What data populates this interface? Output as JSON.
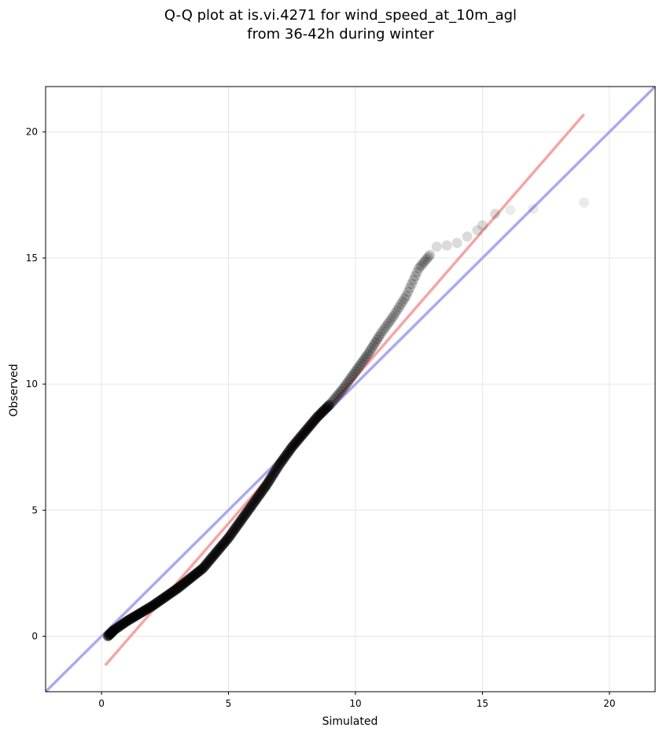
{
  "chart_data": {
    "type": "scatter",
    "title_lines": [
      "Q-Q plot at is.vi.4271 for wind_speed_at_10m_agl",
      "from 36-42h during winter"
    ],
    "xlabel": "Simulated",
    "ylabel": "Observed",
    "xlim": [
      -2.2,
      21.8
    ],
    "ylim": [
      -2.2,
      21.8
    ],
    "xticks": [
      "0",
      "5",
      "10",
      "15",
      "20"
    ],
    "yticks": [
      "0",
      "5",
      "10",
      "15",
      "20"
    ],
    "grid": true,
    "colors": {
      "points": "#000000",
      "identity_line": "#aaaaee",
      "fit_line": "#f5a5a5",
      "grid": "#e6e6e6"
    },
    "identity_line": {
      "x": [
        -2.2,
        21.8
      ],
      "y": [
        -2.2,
        21.8
      ]
    },
    "fit_line": {
      "x": [
        0.15,
        19.0
      ],
      "y": [
        -1.15,
        20.7
      ]
    },
    "quantile_curve": [
      [
        0.25,
        0.0
      ],
      [
        0.5,
        0.25
      ],
      [
        1.0,
        0.6
      ],
      [
        1.5,
        0.9
      ],
      [
        2.0,
        1.2
      ],
      [
        2.5,
        1.55
      ],
      [
        3.0,
        1.9
      ],
      [
        3.5,
        2.3
      ],
      [
        4.0,
        2.7
      ],
      [
        4.5,
        3.3
      ],
      [
        5.0,
        3.9
      ],
      [
        5.5,
        4.6
      ],
      [
        6.0,
        5.3
      ],
      [
        6.5,
        6.0
      ],
      [
        7.0,
        6.8
      ],
      [
        7.5,
        7.5
      ],
      [
        8.0,
        8.1
      ],
      [
        8.5,
        8.7
      ],
      [
        9.0,
        9.2
      ],
      [
        9.5,
        9.8
      ],
      [
        10.0,
        10.5
      ],
      [
        10.5,
        11.2
      ],
      [
        11.0,
        12.0
      ],
      [
        11.5,
        12.7
      ],
      [
        12.0,
        13.5
      ],
      [
        12.5,
        14.6
      ],
      [
        13.0,
        15.2
      ],
      [
        13.5,
        15.5
      ],
      [
        14.0,
        15.7
      ],
      [
        14.5,
        16.0
      ],
      [
        15.0,
        16.4
      ],
      [
        15.5,
        16.75
      ],
      [
        16.1,
        16.9
      ],
      [
        17.0,
        16.95
      ],
      [
        19.0,
        17.2
      ]
    ],
    "tail_points": [
      [
        13.2,
        15.45
      ],
      [
        13.6,
        15.5
      ],
      [
        14.0,
        15.6
      ],
      [
        14.4,
        15.85
      ],
      [
        14.8,
        16.1
      ],
      [
        15.0,
        16.3
      ],
      [
        15.5,
        16.75
      ],
      [
        16.1,
        16.9
      ],
      [
        17.0,
        16.95
      ],
      [
        19.0,
        17.2
      ]
    ]
  }
}
